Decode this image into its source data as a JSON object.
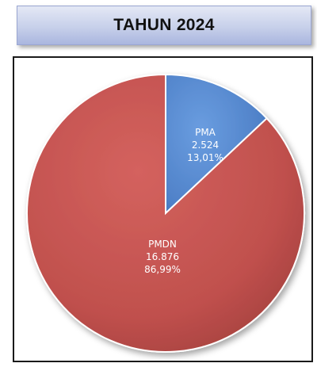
{
  "header": {
    "title": "TAHUN 2024"
  },
  "chart_data": {
    "type": "pie",
    "title": "TAHUN 2024",
    "slices": [
      {
        "name": "PMA",
        "value": 2524,
        "value_label": "2.524",
        "percent_label": "13,01%",
        "percent": 13.01,
        "color": "#5b8fd3"
      },
      {
        "name": "PMDN",
        "value": 16876,
        "value_label": "16.876",
        "percent_label": "86,99%",
        "percent": 86.99,
        "color": "#c0504d"
      }
    ],
    "start": "12 o'clock",
    "direction": "clockwise",
    "legend": "none"
  }
}
